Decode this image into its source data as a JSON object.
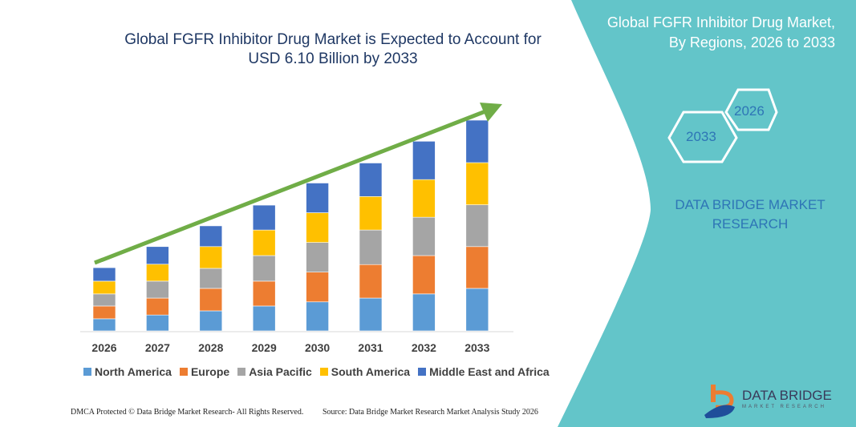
{
  "chart_data": {
    "type": "bar",
    "stacked": true,
    "title": "Global FGFR Inhibitor Drug Market is Expected to Account for USD 6.10 Billion by 2033",
    "categories": [
      "2026",
      "2027",
      "2028",
      "2029",
      "2030",
      "2031",
      "2032",
      "2033"
    ],
    "series": [
      {
        "name": "North America",
        "color": "#5B9BD5",
        "values": [
          0.35,
          0.46,
          0.58,
          0.72,
          0.84,
          0.95,
          1.07,
          1.23
        ]
      },
      {
        "name": "Europe",
        "color": "#ED7D31",
        "values": [
          0.37,
          0.49,
          0.65,
          0.72,
          0.86,
          0.97,
          1.11,
          1.21
        ]
      },
      {
        "name": "Asia Pacific",
        "color": "#A5A5A5",
        "values": [
          0.35,
          0.49,
          0.58,
          0.74,
          0.86,
          1.0,
          1.11,
          1.21
        ]
      },
      {
        "name": "South America",
        "color": "#FFC000",
        "values": [
          0.37,
          0.49,
          0.63,
          0.74,
          0.86,
          0.97,
          1.09,
          1.22
        ]
      },
      {
        "name": "Middle East and Africa",
        "color": "#4472C4",
        "values": [
          0.39,
          0.51,
          0.6,
          0.72,
          0.86,
          0.97,
          1.11,
          1.23
        ]
      }
    ],
    "ylim": [
      0,
      6.1
    ],
    "legend": "bottom",
    "grid": false,
    "trend_arrow_color": "#70AD47"
  },
  "side_panel": {
    "title_line1": "Global FGFR Inhibitor Drug Market,",
    "title_line2": "By Regions, 2026 to 2033",
    "hex_start": "2026",
    "hex_end": "2033",
    "brand_line1": "DATA BRIDGE MARKET",
    "brand_line2": "RESEARCH",
    "panel_color": "#63C5C9"
  },
  "logo": {
    "name": "DATA BRIDGE",
    "sub": "MARKET RESEARCH"
  },
  "footer": {
    "copyright": "DMCA Protected © Data Bridge Market Research-  All Rights Reserved.",
    "source": "Source: Data Bridge Market Research  Market Analysis Study 2026"
  }
}
